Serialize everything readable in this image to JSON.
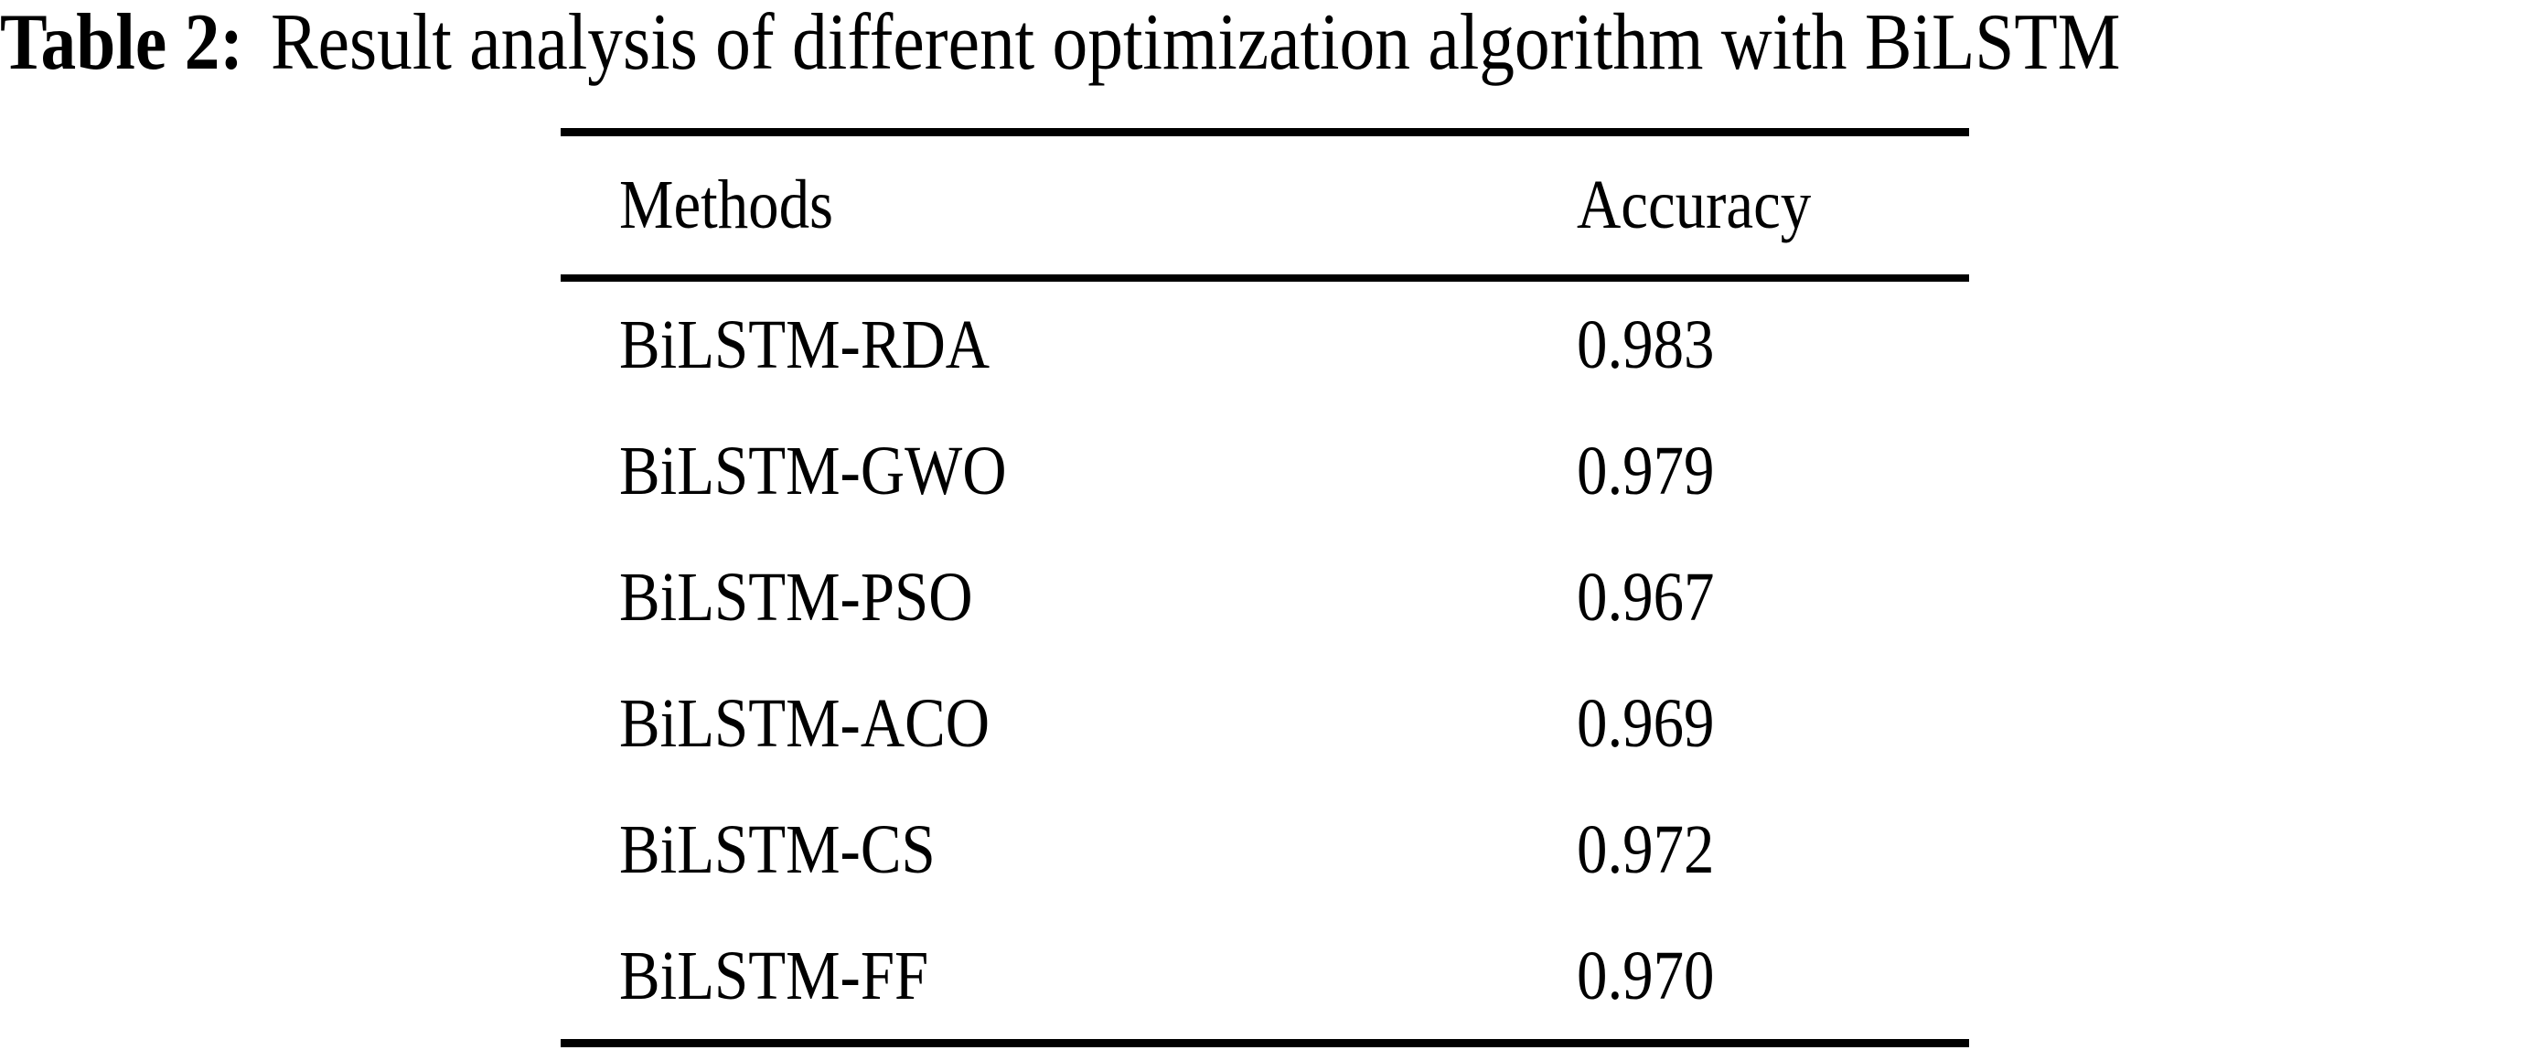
{
  "caption": {
    "label": "Table 2:",
    "text": "Result analysis of different optimization algorithm with BiLSTM"
  },
  "table": {
    "headers": {
      "methods": "Methods",
      "accuracy": "Accuracy"
    },
    "rows": [
      {
        "method": "BiLSTM-RDA",
        "accuracy": "0.983"
      },
      {
        "method": "BiLSTM-GWO",
        "accuracy": "0.979"
      },
      {
        "method": "BiLSTM-PSO",
        "accuracy": "0.967"
      },
      {
        "method": "BiLSTM-ACO",
        "accuracy": "0.969"
      },
      {
        "method": "BiLSTM-CS",
        "accuracy": "0.972"
      },
      {
        "method": "BiLSTM-FF",
        "accuracy": "0.970"
      }
    ]
  },
  "colors": {
    "text": "#000000",
    "background": "#ffffff",
    "rule": "#000000"
  }
}
